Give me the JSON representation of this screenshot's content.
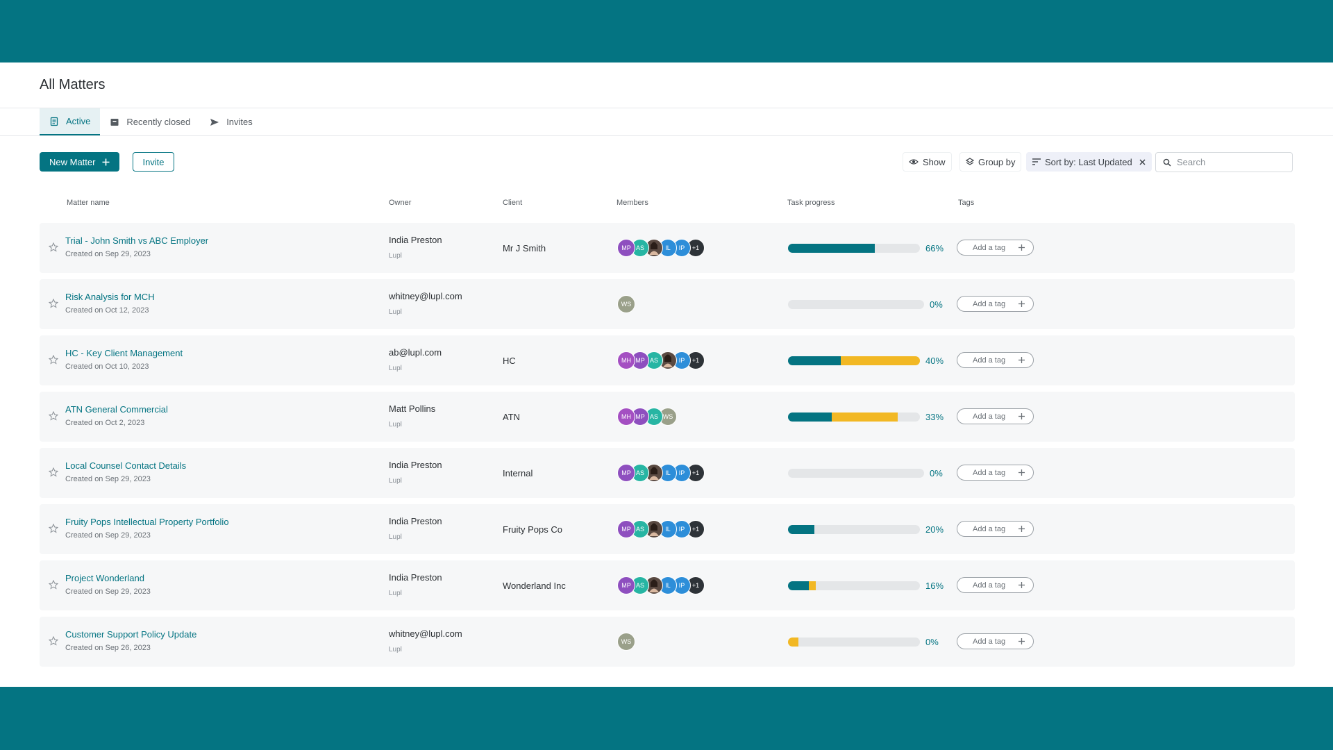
{
  "page": {
    "title": "All Matters"
  },
  "tabs": [
    {
      "label": "Active",
      "icon": "document-icon",
      "active": true
    },
    {
      "label": "Recently closed",
      "icon": "archive-box-icon",
      "active": false
    },
    {
      "label": "Invites",
      "icon": "send-icon",
      "active": false
    }
  ],
  "toolbar": {
    "new_matter_label": "New Matter",
    "invite_label": "Invite",
    "show_label": "Show",
    "group_by_label": "Group by",
    "sort_label": "Sort by: Last Updated",
    "search_placeholder": "Search"
  },
  "columns": {
    "matter_name": "Matter name",
    "owner": "Owner",
    "client": "Client",
    "members": "Members",
    "task_progress": "Task progress",
    "tags": "Tags"
  },
  "add_tag_label": "Add a tag",
  "colors": {
    "accent": "#047482",
    "yellow": "#f2b824",
    "bar_track": "#e4e6e8"
  },
  "rows": [
    {
      "name": "Trial - John Smith vs ABC Employer",
      "created": "Created on Sep 29, 2023",
      "owner": "India Preston",
      "org": "Lupl",
      "client": "Mr J Smith",
      "members": [
        {
          "label": "MP",
          "color": "#8e4fbf"
        },
        {
          "label": "AS",
          "color": "#27b5a3"
        },
        {
          "label": "",
          "color": "#5a4a42",
          "photo": true
        },
        {
          "label": "IL",
          "color": "#2d8ed9"
        },
        {
          "label": "IP",
          "color": "#2d8ed9"
        },
        {
          "label": "+1",
          "color": "#2e3338"
        }
      ],
      "progress_teal": 0.66,
      "progress_yellow": 0,
      "percent": "66%"
    },
    {
      "name": "Risk Analysis for MCH",
      "created": "Created on Oct 12, 2023",
      "owner": "whitney@lupl.com",
      "org": "Lupl",
      "client": "",
      "members": [
        {
          "label": "WS",
          "color": "#9aa08a"
        }
      ],
      "progress_teal": 0,
      "progress_yellow": 0,
      "percent": "0%"
    },
    {
      "name": "HC - Key Client Management",
      "created": "Created on Oct 10, 2023",
      "owner": "ab@lupl.com",
      "org": "Lupl",
      "client": "HC",
      "members": [
        {
          "label": "MH",
          "color": "#a44fc2"
        },
        {
          "label": "MP",
          "color": "#8e4fbf"
        },
        {
          "label": "AS",
          "color": "#27b5a3"
        },
        {
          "label": "",
          "color": "#5a4a42",
          "photo": true
        },
        {
          "label": "IP",
          "color": "#2d8ed9"
        },
        {
          "label": "+1",
          "color": "#2e3338"
        }
      ],
      "progress_teal": 0.4,
      "progress_yellow": 0.6,
      "percent": "40%"
    },
    {
      "name": "ATN General Commercial",
      "created": "Created on Oct 2, 2023",
      "owner": "Matt Pollins",
      "org": "Lupl",
      "client": "ATN",
      "members": [
        {
          "label": "MH",
          "color": "#a44fc2"
        },
        {
          "label": "MP",
          "color": "#8e4fbf"
        },
        {
          "label": "AS",
          "color": "#27b5a3"
        },
        {
          "label": "WS",
          "color": "#9aa08a"
        }
      ],
      "progress_teal": 0.33,
      "progress_yellow": 0.5,
      "percent": "33%"
    },
    {
      "name": "Local Counsel Contact Details",
      "created": "Created on Sep 29, 2023",
      "owner": "India Preston",
      "org": "Lupl",
      "client": "Internal",
      "members": [
        {
          "label": "MP",
          "color": "#8e4fbf"
        },
        {
          "label": "AS",
          "color": "#27b5a3"
        },
        {
          "label": "",
          "color": "#5a4a42",
          "photo": true
        },
        {
          "label": "IL",
          "color": "#2d8ed9"
        },
        {
          "label": "IP",
          "color": "#2d8ed9"
        },
        {
          "label": "+1",
          "color": "#2e3338"
        }
      ],
      "progress_teal": 0,
      "progress_yellow": 0,
      "percent": "0%"
    },
    {
      "name": "Fruity Pops Intellectual Property Portfolio",
      "created": "Created on Sep 29, 2023",
      "owner": "India Preston",
      "org": "Lupl",
      "client": "Fruity Pops Co",
      "members": [
        {
          "label": "MP",
          "color": "#8e4fbf"
        },
        {
          "label": "AS",
          "color": "#27b5a3"
        },
        {
          "label": "",
          "color": "#5a4a42",
          "photo": true
        },
        {
          "label": "IL",
          "color": "#2d8ed9"
        },
        {
          "label": "IP",
          "color": "#2d8ed9"
        },
        {
          "label": "+1",
          "color": "#2e3338"
        }
      ],
      "progress_teal": 0.2,
      "progress_yellow": 0,
      "percent": "20%"
    },
    {
      "name": "Project Wonderland",
      "created": "Created on Sep 29, 2023",
      "owner": "India Preston",
      "org": "Lupl",
      "client": "Wonderland Inc",
      "members": [
        {
          "label": "MP",
          "color": "#8e4fbf"
        },
        {
          "label": "AS",
          "color": "#27b5a3"
        },
        {
          "label": "",
          "color": "#5a4a42",
          "photo": true
        },
        {
          "label": "IL",
          "color": "#2d8ed9"
        },
        {
          "label": "IP",
          "color": "#2d8ed9"
        },
        {
          "label": "+1",
          "color": "#2e3338"
        }
      ],
      "progress_teal": 0.16,
      "progress_yellow": 0.05,
      "percent": "16%"
    },
    {
      "name": "Customer Support Policy Update",
      "created": "Created on Sep 26, 2023",
      "owner": "whitney@lupl.com",
      "org": "Lupl",
      "client": "",
      "members": [
        {
          "label": "WS",
          "color": "#9aa08a"
        }
      ],
      "progress_teal": 0,
      "progress_yellow": 0.08,
      "percent": "0%"
    }
  ]
}
